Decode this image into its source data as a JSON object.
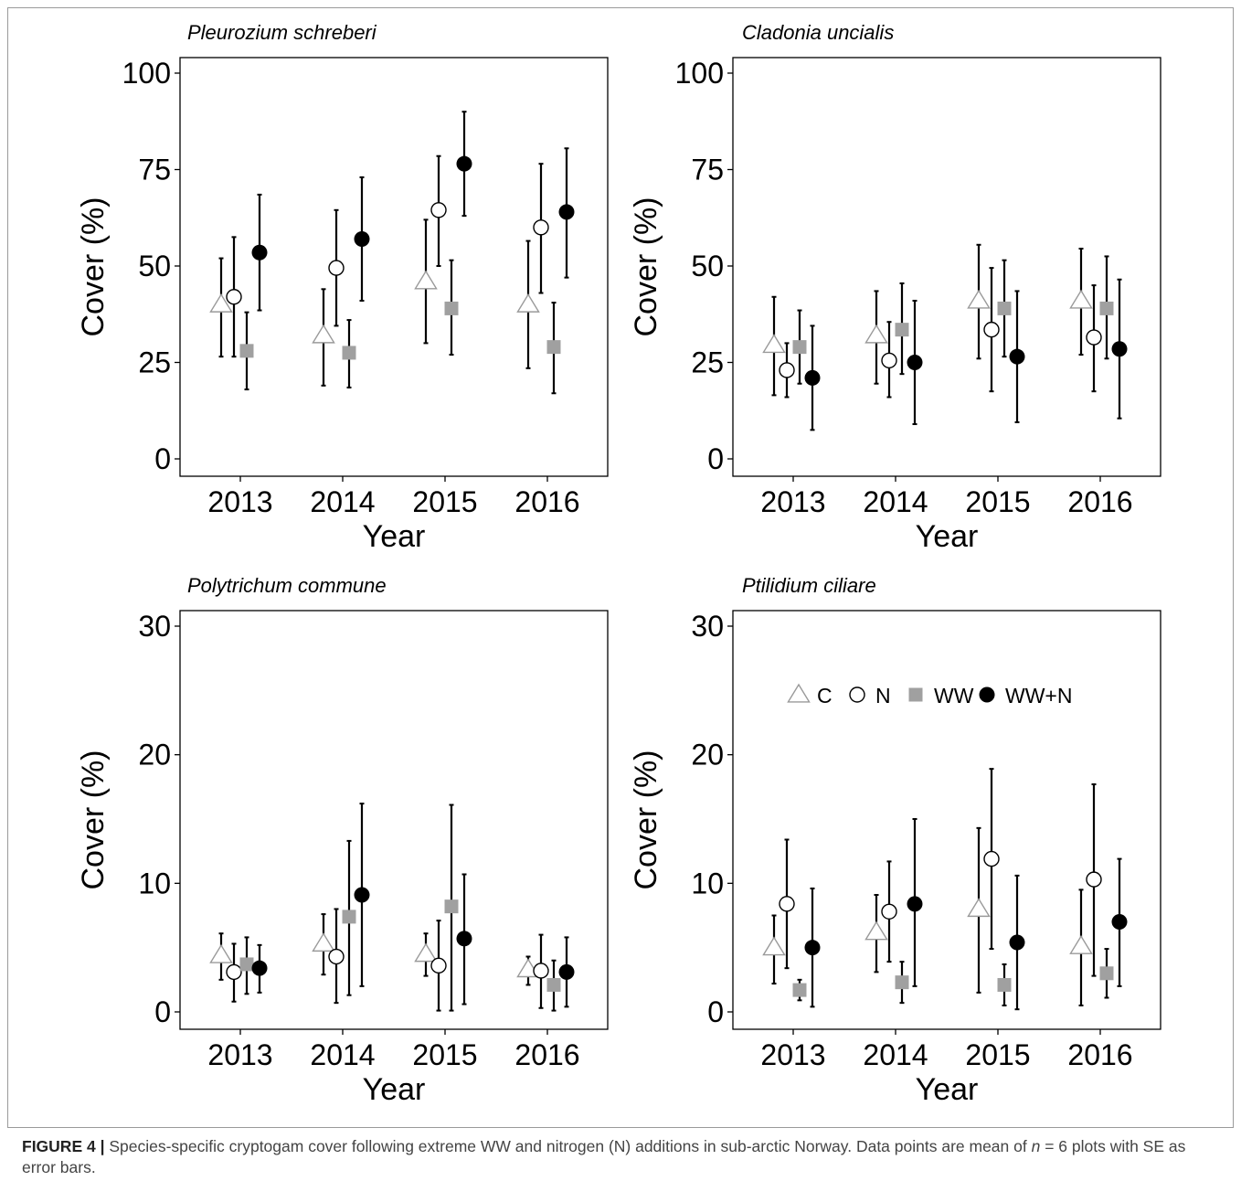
{
  "caption": {
    "label": "FIGURE 4 |",
    "text_before_n": " Species-specific cryptogam cover following extreme WW and nitrogen (N) additions in sub-arctic Norway. Data points are mean of ",
    "n_symbol": "n",
    "text_after_n": " = 6 plots with SE as error bars."
  },
  "chart_data": [
    {
      "type": "scatter",
      "title": "Pleurozium schreberi",
      "xlabel": "Year",
      "ylabel": "Cover (%)",
      "categories": [
        "2013",
        "2014",
        "2015",
        "2016"
      ],
      "ylim": [
        0,
        100
      ],
      "yticks": [
        "0",
        "25",
        "50",
        "75",
        "100"
      ],
      "grid": false,
      "series": [
        {
          "key": "C",
          "marker": "triangle-open",
          "color": "#9a9a9a",
          "values": [
            40,
            32,
            46,
            40
          ],
          "lower": [
            26.5,
            19,
            30,
            23.5
          ],
          "upper": [
            52,
            44,
            62,
            56.5
          ]
        },
        {
          "key": "N",
          "marker": "circle-open",
          "color": "#000000",
          "values": [
            42,
            49.5,
            64.5,
            60
          ],
          "lower": [
            26.5,
            34.5,
            50,
            43
          ],
          "upper": [
            57.5,
            64.5,
            78.5,
            76.5
          ]
        },
        {
          "key": "WW",
          "marker": "square",
          "color": "#a0a0a0",
          "values": [
            28,
            27.5,
            39,
            29
          ],
          "lower": [
            18,
            18.5,
            27,
            17
          ],
          "upper": [
            38,
            36,
            51.5,
            40.5
          ]
        },
        {
          "key": "WW+N",
          "marker": "circle",
          "color": "#000000",
          "values": [
            53.5,
            57,
            76.5,
            64
          ],
          "lower": [
            38.5,
            41,
            63,
            47
          ],
          "upper": [
            68.5,
            73,
            90,
            80.5
          ]
        }
      ]
    },
    {
      "type": "scatter",
      "title": "Cladonia uncialis",
      "xlabel": "Year",
      "ylabel": "Cover (%)",
      "categories": [
        "2013",
        "2014",
        "2015",
        "2016"
      ],
      "ylim": [
        0,
        100
      ],
      "yticks": [
        "0",
        "25",
        "50",
        "75",
        "100"
      ],
      "grid": false,
      "series": [
        {
          "key": "C",
          "marker": "triangle-open",
          "color": "#9a9a9a",
          "values": [
            29.5,
            32,
            41,
            41
          ],
          "lower": [
            16.5,
            19.5,
            26,
            27
          ],
          "upper": [
            42,
            43.5,
            55.5,
            54.5
          ]
        },
        {
          "key": "N",
          "marker": "circle-open",
          "color": "#000000",
          "values": [
            23,
            25.5,
            33.5,
            31.5
          ],
          "lower": [
            16,
            16,
            17.5,
            17.5
          ],
          "upper": [
            30,
            35.5,
            49.5,
            45
          ]
        },
        {
          "key": "WW",
          "marker": "square",
          "color": "#a0a0a0",
          "values": [
            29,
            33.5,
            39,
            39
          ],
          "lower": [
            19.5,
            22,
            26.5,
            26
          ],
          "upper": [
            38.5,
            45.5,
            51.5,
            52.5
          ]
        },
        {
          "key": "WW+N",
          "marker": "circle",
          "color": "#000000",
          "values": [
            21,
            25,
            26.5,
            28.5
          ],
          "lower": [
            7.5,
            9,
            9.5,
            10.5
          ],
          "upper": [
            34.5,
            41,
            43.5,
            46.5
          ]
        }
      ]
    },
    {
      "type": "scatter",
      "title": "Polytrichum commune",
      "xlabel": "Year",
      "ylabel": "Cover (%)",
      "categories": [
        "2013",
        "2014",
        "2015",
        "2016"
      ],
      "ylim": [
        0,
        30
      ],
      "yticks": [
        "0",
        "10",
        "20",
        "30"
      ],
      "grid": false,
      "series": [
        {
          "key": "C",
          "marker": "triangle-open",
          "color": "#9a9a9a",
          "values": [
            4.4,
            5.3,
            4.5,
            3.3
          ],
          "lower": [
            2.5,
            2.9,
            2.8,
            2.1
          ],
          "upper": [
            6.1,
            7.6,
            6.1,
            4.3
          ]
        },
        {
          "key": "N",
          "marker": "circle-open",
          "color": "#000000",
          "values": [
            3.1,
            4.3,
            3.6,
            3.2
          ],
          "lower": [
            0.8,
            0.7,
            0.1,
            0.3
          ],
          "upper": [
            5.3,
            8.0,
            7.1,
            6.0
          ]
        },
        {
          "key": "WW",
          "marker": "square",
          "color": "#a0a0a0",
          "values": [
            3.7,
            7.4,
            8.2,
            2.1
          ],
          "lower": [
            1.4,
            1.3,
            0.1,
            0.1
          ],
          "upper": [
            5.8,
            13.3,
            16.1,
            4.0
          ]
        },
        {
          "key": "WW+N",
          "marker": "circle",
          "color": "#000000",
          "values": [
            3.4,
            9.1,
            5.7,
            3.1
          ],
          "lower": [
            1.5,
            2.0,
            0.6,
            0.4
          ],
          "upper": [
            5.2,
            16.2,
            10.7,
            5.8
          ]
        }
      ]
    },
    {
      "type": "scatter",
      "title": "Ptilidium ciliare",
      "xlabel": "Year",
      "ylabel": "Cover (%)",
      "categories": [
        "2013",
        "2014",
        "2015",
        "2016"
      ],
      "ylim": [
        0,
        30
      ],
      "yticks": [
        "0",
        "10",
        "20",
        "30"
      ],
      "grid": false,
      "legend": {
        "placement": "top-center",
        "entries": [
          "C",
          "N",
          "WW",
          "WW+N"
        ]
      },
      "series": [
        {
          "key": "C",
          "marker": "triangle-open",
          "color": "#9a9a9a",
          "values": [
            5.0,
            6.2,
            8.0,
            5.1
          ],
          "lower": [
            2.2,
            3.1,
            1.5,
            0.5
          ],
          "upper": [
            7.5,
            9.1,
            14.3,
            9.5
          ]
        },
        {
          "key": "N",
          "marker": "circle-open",
          "color": "#000000",
          "values": [
            8.4,
            7.8,
            11.9,
            10.3
          ],
          "lower": [
            3.4,
            3.9,
            4.9,
            2.8
          ],
          "upper": [
            13.4,
            11.7,
            18.9,
            17.7
          ]
        },
        {
          "key": "WW",
          "marker": "square",
          "color": "#a0a0a0",
          "values": [
            1.7,
            2.3,
            2.1,
            3.0
          ],
          "lower": [
            0.9,
            0.7,
            0.5,
            1.1
          ],
          "upper": [
            2.5,
            3.9,
            3.7,
            4.9
          ]
        },
        {
          "key": "WW+N",
          "marker": "circle",
          "color": "#000000",
          "values": [
            5.0,
            8.4,
            5.4,
            7.0
          ],
          "lower": [
            0.4,
            2.0,
            0.2,
            2.0
          ],
          "upper": [
            9.6,
            15.0,
            10.6,
            11.9
          ]
        }
      ]
    }
  ]
}
